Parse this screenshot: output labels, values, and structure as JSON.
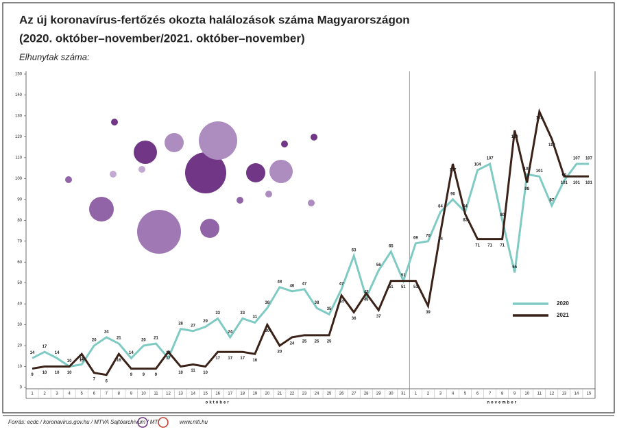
{
  "chart_data": {
    "type": "line",
    "title": [
      "Az új koronavírus-fertőzés okozta halálozások száma Magyarországon",
      "(2020. október–november/2021. október–november)"
    ],
    "y_label": "Elhunytak száma:",
    "categories": [
      "1",
      "2",
      "3",
      "4",
      "5",
      "6",
      "7",
      "8",
      "9",
      "10",
      "11",
      "12",
      "13",
      "14",
      "15",
      "16",
      "17",
      "18",
      "19",
      "20",
      "21",
      "22",
      "23",
      "24",
      "25",
      "26",
      "27",
      "28",
      "29",
      "30",
      "31",
      "1",
      "2",
      "3",
      "4",
      "5",
      "6",
      "7",
      "8",
      "9",
      "10",
      "11",
      "12",
      "13",
      "14",
      "15"
    ],
    "x_groups": [
      "október",
      "november"
    ],
    "series": [
      {
        "name": "2020",
        "color": "#7fcbc4",
        "values": [
          14,
          17,
          14,
          10,
          11,
          20,
          24,
          21,
          14,
          20,
          21,
          14,
          28,
          27,
          29,
          33,
          24,
          33,
          31,
          38,
          48,
          46,
          47,
          38,
          35,
          47,
          63,
          43,
          56,
          65,
          51,
          69,
          70,
          84,
          90,
          84,
          104,
          107,
          80,
          55,
          102,
          101,
          87,
          99,
          107,
          107
        ]
      },
      {
        "name": "2021",
        "color": "#3a2218",
        "values": [
          9,
          10,
          10,
          10,
          16,
          7,
          6,
          16,
          9,
          9,
          9,
          17,
          10,
          11,
          10,
          17,
          17,
          17,
          16,
          30,
          20,
          24,
          25,
          25,
          25,
          44,
          36,
          45,
          37,
          51,
          51,
          51,
          39,
          74,
          107,
          83,
          71,
          71,
          71,
          123,
          98,
          132,
          119,
          101,
          101,
          101
        ]
      }
    ],
    "ylim": [
      0,
      150
    ],
    "yticks": [
      0,
      10,
      20,
      30,
      40,
      50,
      60,
      70,
      80,
      90,
      100,
      110,
      120,
      130,
      140,
      150
    ],
    "source": "Forrás: ecdc / koronavírus.gov.hu / MTVA Sajtóarchívum / MTI",
    "website": "www.mti.hu"
  }
}
